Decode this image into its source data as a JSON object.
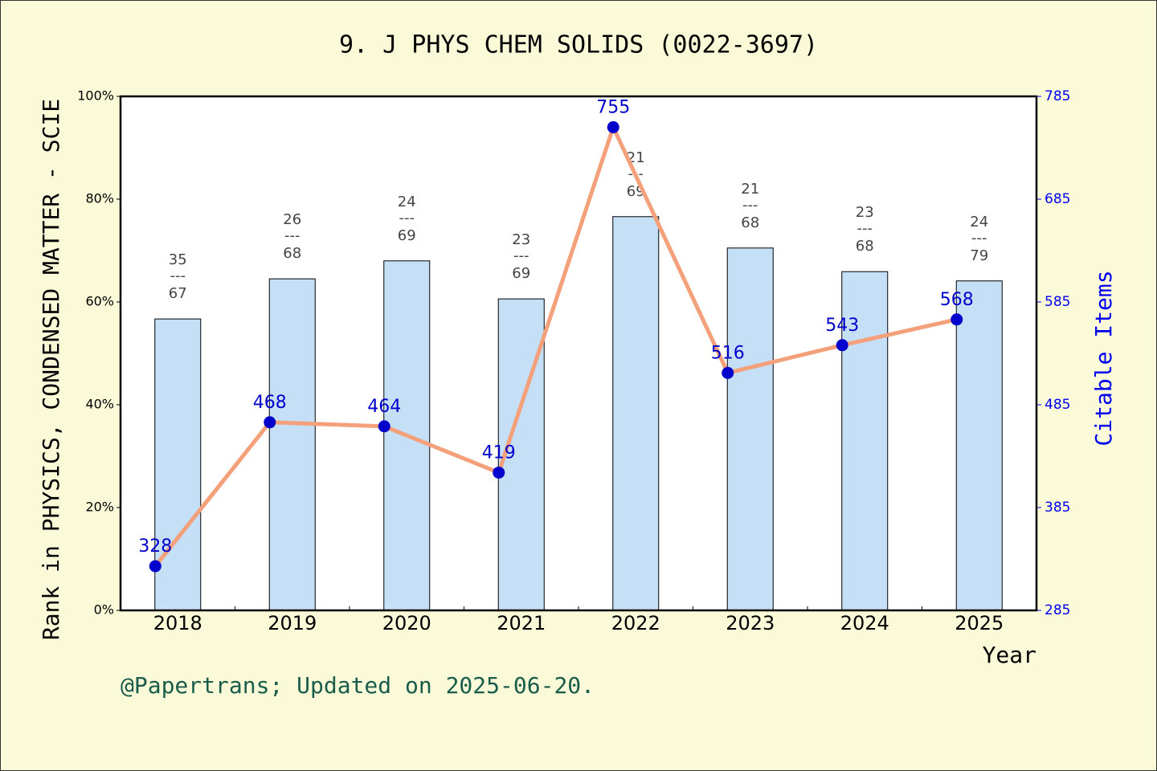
{
  "chart_data": {
    "type": "bar",
    "title": "9. J PHYS CHEM SOLIDS (0022-3697)",
    "ylabel": "Rank in PHYSICS, CONDENSED MATTER - SCIE",
    "y2label": "Citable Items",
    "xlabel": "Year",
    "footer": "@Papertrans; Updated on 2025-06-20.",
    "categories": [
      "2018",
      "2019",
      "2020",
      "2021",
      "2022",
      "2023",
      "2024",
      "2025"
    ],
    "series": [
      {
        "type": "bar",
        "color": "#c5dff7",
        "values": [
          56.7,
          64.5,
          68.0,
          60.6,
          76.6,
          70.5,
          65.9,
          64.1
        ]
      },
      {
        "type": "line",
        "axis": "y2",
        "color": "#f4a07a",
        "marker_color": "#0000cc",
        "values": [
          328,
          468,
          464,
          419,
          755,
          516,
          543,
          568
        ]
      }
    ],
    "rank": [
      35,
      26,
      24,
      23,
      21,
      21,
      23,
      24
    ],
    "total": [
      67,
      68,
      69,
      69,
      69,
      68,
      68,
      79
    ],
    "rank_separator": "---",
    "ylim": [
      0,
      100
    ],
    "yticks": [
      {
        "value": 0,
        "label": "0%"
      },
      {
        "value": 20,
        "label": "20%"
      },
      {
        "value": 40,
        "label": "40%"
      },
      {
        "value": 60,
        "label": "60%"
      },
      {
        "value": 80,
        "label": "80%"
      },
      {
        "value": 100,
        "label": "100%"
      }
    ],
    "y2lim": [
      285,
      785
    ],
    "y2ticks": [
      285,
      385,
      485,
      585,
      685,
      785
    ]
  }
}
